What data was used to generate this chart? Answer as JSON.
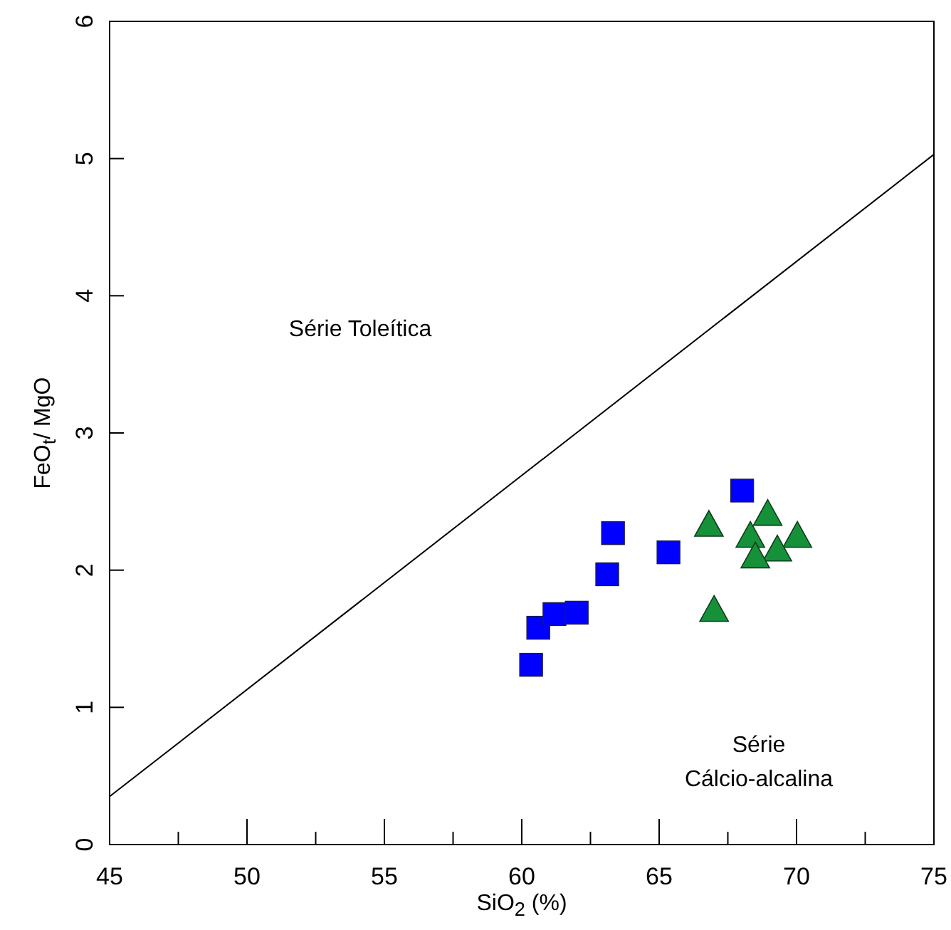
{
  "chart_data": {
    "type": "scatter",
    "xlabel": "SiO$_{2}$ (%)",
    "ylabel": "FeO$_{t}$/ MgO",
    "xlim": [
      45,
      75
    ],
    "ylim": [
      0,
      6
    ],
    "xticks": [
      45,
      {
        "value": 47.5,
        "label": null
      },
      50,
      {
        "value": 52.5,
        "label": null
      },
      55,
      {
        "value": 57.5,
        "label": null
      },
      60,
      {
        "value": 62.5,
        "label": null
      },
      65,
      {
        "value": 67.5,
        "label": null
      },
      70,
      {
        "value": 72.5,
        "label": null
      },
      75
    ],
    "yticks": [
      0,
      1,
      2,
      3,
      4,
      5,
      6
    ],
    "grid": false,
    "series": [
      {
        "type": "line",
        "color": "#000000",
        "marker": "none",
        "line_style": "solid",
        "x": [
          45,
          75
        ],
        "values": [
          0.35,
          5.03
        ]
      },
      {
        "color": "#0000ff",
        "marker": "square",
        "x": [
          60.34,
          60.6,
          61.19,
          62.0,
          63.11,
          63.32,
          65.34,
          68.02
        ],
        "values": [
          1.31,
          1.58,
          1.68,
          1.69,
          1.97,
          2.27,
          2.13,
          2.58
        ]
      },
      {
        "color": "#16913a",
        "marker": "triangle",
        "x": [
          66.81,
          68.95,
          68.32,
          70.03,
          69.3,
          68.5,
          67.0
        ],
        "values": [
          2.32,
          2.4,
          2.24,
          2.24,
          2.14,
          2.09,
          1.7
        ]
      }
    ],
    "annotations": [
      "Série Toleítica",
      "Série\nCálcio-alcalina"
    ]
  }
}
